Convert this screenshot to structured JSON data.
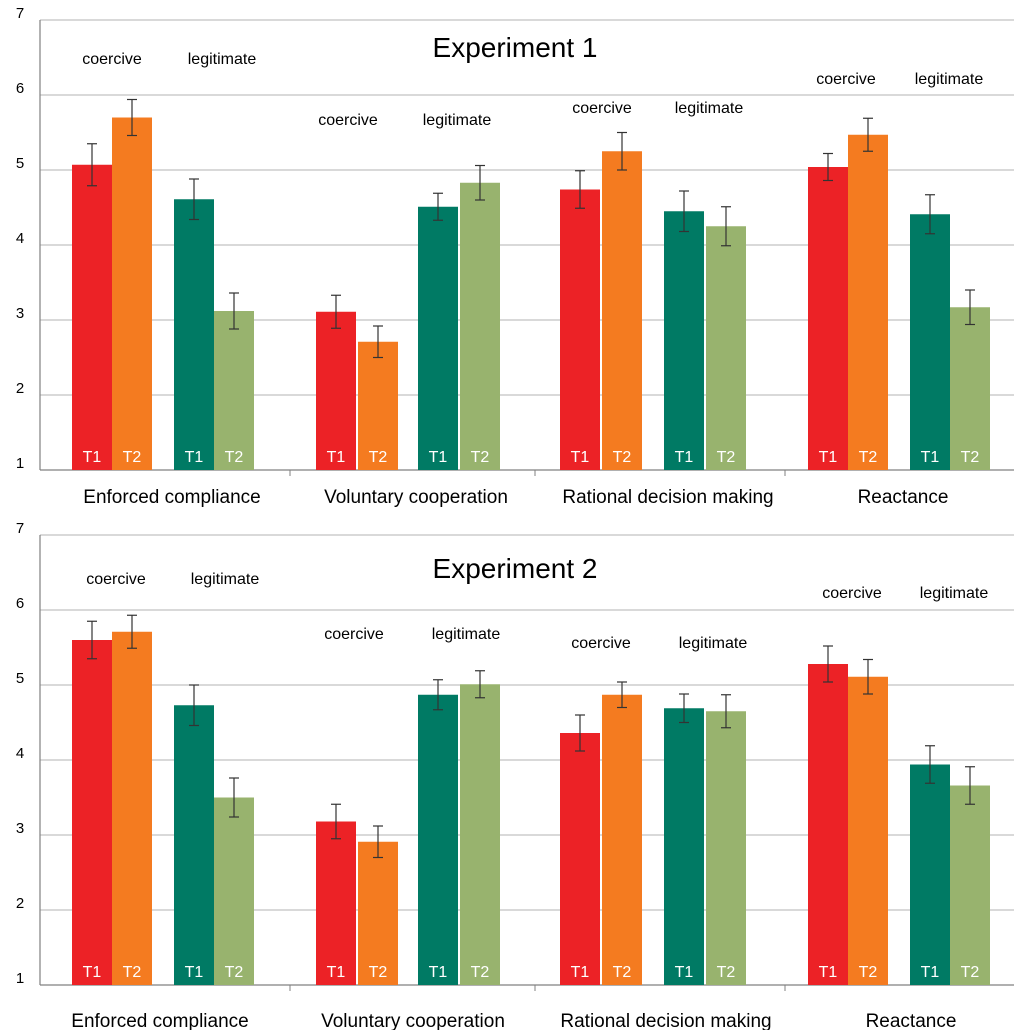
{
  "colors": {
    "coercive_T1": "#ec2226",
    "coercive_T2": "#f47b20",
    "legitimate_T1": "#007a64",
    "legitimate_T2": "#98b36e",
    "gridline": "#b3b3b3",
    "axis": "#808080",
    "error_bar": "#333333"
  },
  "chart_data": [
    {
      "type": "bar",
      "title": "Experiment 1",
      "ylim": [
        1,
        7
      ],
      "yticks": [
        1,
        2,
        3,
        4,
        5,
        6,
        7
      ],
      "grid": true,
      "categories": [
        "Enforced compliance",
        "Voluntary cooperation",
        "Rational decision making",
        "Reactance"
      ],
      "group_labels": [
        "coercive",
        "legitimate"
      ],
      "bar_labels": [
        "T1",
        "T2"
      ],
      "series": [
        {
          "group": "coercive",
          "time": "T1",
          "values": [
            5.07,
            3.11,
            4.74,
            5.04
          ],
          "errors": [
            0.28,
            0.22,
            0.25,
            0.18
          ]
        },
        {
          "group": "coercive",
          "time": "T2",
          "values": [
            5.7,
            2.71,
            5.25,
            5.47
          ],
          "errors": [
            0.24,
            0.21,
            0.25,
            0.22
          ]
        },
        {
          "group": "legitimate",
          "time": "T1",
          "values": [
            4.61,
            4.51,
            4.45,
            4.41
          ],
          "errors": [
            0.27,
            0.18,
            0.27,
            0.26
          ]
        },
        {
          "group": "legitimate",
          "time": "T2",
          "values": [
            3.12,
            4.83,
            4.25,
            3.17
          ],
          "errors": [
            0.24,
            0.23,
            0.26,
            0.23
          ]
        }
      ]
    },
    {
      "type": "bar",
      "title": "Experiment 2",
      "ylim": [
        1,
        7
      ],
      "yticks": [
        1,
        2,
        3,
        4,
        5,
        6,
        7
      ],
      "grid": true,
      "categories": [
        "Enforced compliance",
        "Voluntary cooperation",
        "Rational decision making",
        "Reactance"
      ],
      "group_labels": [
        "coercive",
        "legitimate"
      ],
      "bar_labels": [
        "T1",
        "T2"
      ],
      "series": [
        {
          "group": "coercive",
          "time": "T1",
          "values": [
            5.6,
            3.18,
            4.36,
            5.28
          ],
          "errors": [
            0.25,
            0.23,
            0.24,
            0.24
          ]
        },
        {
          "group": "coercive",
          "time": "T2",
          "values": [
            5.71,
            2.91,
            4.87,
            5.11
          ],
          "errors": [
            0.22,
            0.21,
            0.17,
            0.23
          ]
        },
        {
          "group": "legitimate",
          "time": "T1",
          "values": [
            4.73,
            4.87,
            4.69,
            3.94
          ],
          "errors": [
            0.27,
            0.2,
            0.19,
            0.25
          ]
        },
        {
          "group": "legitimate",
          "time": "T2",
          "values": [
            3.5,
            5.01,
            4.65,
            3.66
          ],
          "errors": [
            0.26,
            0.18,
            0.22,
            0.25
          ]
        }
      ]
    }
  ]
}
